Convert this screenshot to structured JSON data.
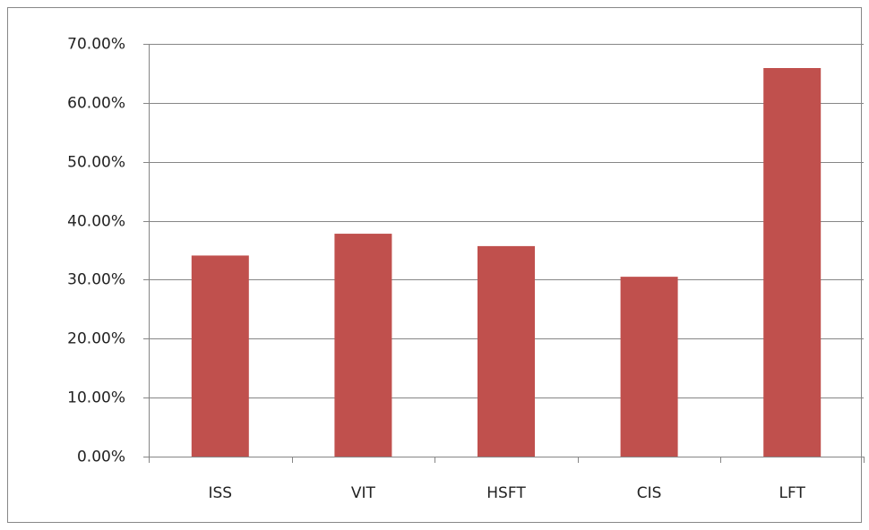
{
  "chart_data": {
    "type": "bar",
    "categories": [
      "ISS",
      "VIT",
      "HSFT",
      "CIS",
      "LFT"
    ],
    "values": [
      34.1,
      37.8,
      35.7,
      30.5,
      65.9
    ],
    "color": "#c0504d",
    "ylim": [
      0,
      70
    ],
    "yticks": [
      {
        "value": 0,
        "label": "0.00%"
      },
      {
        "value": 10,
        "label": "10.00%"
      },
      {
        "value": 20,
        "label": "20.00%"
      },
      {
        "value": 30,
        "label": "30.00%"
      },
      {
        "value": 40,
        "label": "40.00%"
      },
      {
        "value": 50,
        "label": "50.00%"
      },
      {
        "value": 60,
        "label": "60.00%"
      },
      {
        "value": 70,
        "label": "70.00%"
      }
    ],
    "grid": true
  }
}
